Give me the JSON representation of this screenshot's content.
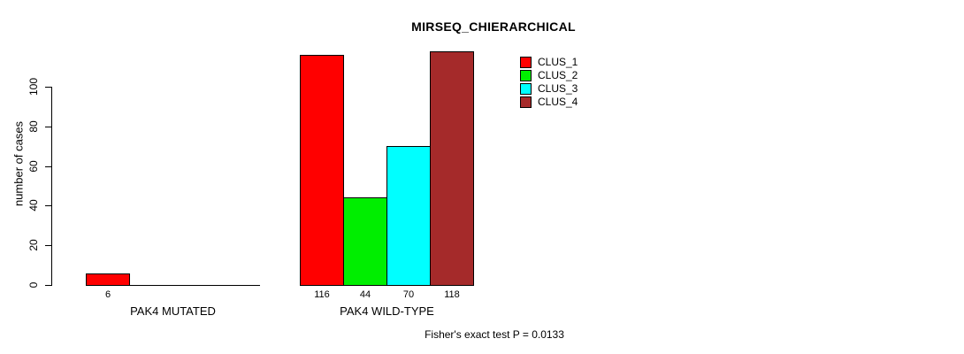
{
  "chart_data": {
    "type": "bar",
    "title": "MIRSEQ_CHIERARCHICAL",
    "ylabel": "number of cases",
    "xlabel": "",
    "annotation": "Fisher's exact test P = 0.0133",
    "y_ticks": [
      0,
      20,
      40,
      60,
      80,
      100
    ],
    "ylim": [
      0,
      118
    ],
    "grid": false,
    "legend_position": "top-right",
    "background_color": "#ffffff",
    "axis_color": "#000000",
    "series": [
      {
        "name": "CLUS_1",
        "color": "#FF0000"
      },
      {
        "name": "CLUS_2",
        "color": "#00EE00"
      },
      {
        "name": "CLUS_3",
        "color": "#00FFFF"
      },
      {
        "name": "CLUS_4",
        "color": "#A52A2A"
      }
    ],
    "categories": [
      "PAK4 MUTATED",
      "PAK4 WILD-TYPE"
    ],
    "values_by_category": [
      [
        6,
        0,
        0,
        0
      ],
      [
        116,
        44,
        70,
        118
      ]
    ],
    "bar_value_labels": [
      [
        "6",
        "",
        "",
        ""
      ],
      [
        "116",
        "44",
        "70",
        "118"
      ]
    ]
  }
}
